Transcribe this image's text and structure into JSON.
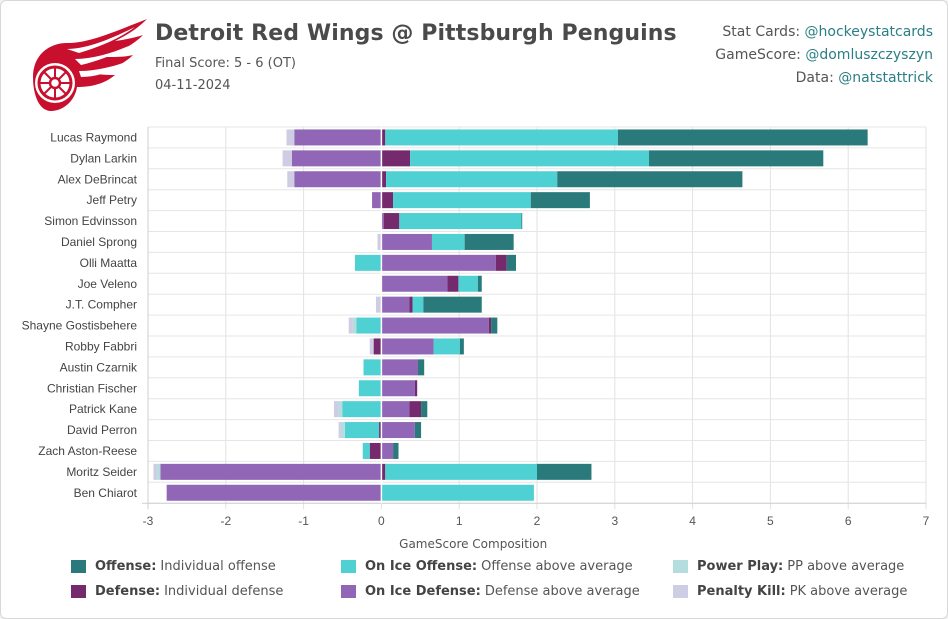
{
  "header": {
    "title": "Detroit Red Wings @ Pittsburgh Penguins",
    "final_score": "Final Score: 5 - 6 (OT)",
    "date": "04-11-2024",
    "team_logo": "red-wings-logo"
  },
  "credits": [
    {
      "label": "Stat Cards: ",
      "handle": "@hockeystatcards"
    },
    {
      "label": "GameScore: ",
      "handle": "@domluszczyszyn"
    },
    {
      "label": "Data: ",
      "handle": "@natstattrick"
    }
  ],
  "colors": {
    "offense": "#2a7a7c",
    "on_ice_offense": "#4fd0d3",
    "power_play": "#b4dde0",
    "defense": "#762a6e",
    "on_ice_defense": "#9166b6",
    "penalty_kill": "#cfcde3"
  },
  "legend": [
    {
      "key": "offense",
      "name": "Offense:",
      "desc": "Individual offense"
    },
    {
      "key": "on_ice_offense",
      "name": "On Ice Offense:",
      "desc": "Offense above average"
    },
    {
      "key": "power_play",
      "name": "Power Play:",
      "desc": "PP above average"
    },
    {
      "key": "defense",
      "name": "Defense:",
      "desc": "Individual defense"
    },
    {
      "key": "on_ice_defense",
      "name": "On Ice Defense:",
      "desc": "Defense above average"
    },
    {
      "key": "penalty_kill",
      "name": "Penalty Kill:",
      "desc": "PK above average"
    }
  ],
  "chart_data": {
    "type": "bar",
    "orientation": "horizontal-stacked",
    "xlabel": "GameScore Composition",
    "xlim": [
      -3,
      7
    ],
    "xticks": [
      -3,
      -2,
      -1,
      0,
      1,
      2,
      3,
      4,
      5,
      6,
      7
    ],
    "grid": true,
    "legend_position": "bottom",
    "series_order": [
      "on_ice_defense",
      "defense",
      "on_ice_offense",
      "offense",
      "power_play",
      "penalty_kill"
    ],
    "players": [
      {
        "name": "Lucas Raymond",
        "on_ice_defense": -1.12,
        "defense": 0.05,
        "on_ice_offense": 2.99,
        "offense": 3.21,
        "power_play": 0,
        "penalty_kill": -0.1
      },
      {
        "name": "Dylan Larkin",
        "on_ice_defense": -1.15,
        "defense": 0.37,
        "on_ice_offense": 3.07,
        "offense": 2.24,
        "power_play": 0,
        "penalty_kill": -0.12
      },
      {
        "name": "Alex DeBrincat",
        "on_ice_defense": -1.12,
        "defense": 0.06,
        "on_ice_offense": 2.2,
        "offense": 2.38,
        "power_play": 0,
        "penalty_kill": -0.09
      },
      {
        "name": "Jeff Petry",
        "on_ice_defense": -0.12,
        "defense": 0.15,
        "on_ice_offense": 1.77,
        "offense": 0.76,
        "power_play": 0,
        "penalty_kill": 0
      },
      {
        "name": "Simon Edvinsson",
        "on_ice_defense": 0.03,
        "defense": 0.2,
        "on_ice_offense": 1.57,
        "offense": 0.01,
        "power_play": 0,
        "penalty_kill": 0
      },
      {
        "name": "Daniel Sprong",
        "on_ice_defense": 0.65,
        "defense": 0,
        "on_ice_offense": 0.42,
        "offense": 0.63,
        "power_play": 0,
        "penalty_kill": -0.05
      },
      {
        "name": "Olli Maatta",
        "on_ice_defense": 1.47,
        "defense": 0.14,
        "on_ice_offense": -0.34,
        "offense": 0.12,
        "power_play": 0,
        "penalty_kill": 0
      },
      {
        "name": "Joe Veleno",
        "on_ice_defense": 0.85,
        "defense": 0.14,
        "on_ice_offense": 0.25,
        "offense": 0.05,
        "power_play": 0,
        "penalty_kill": 0
      },
      {
        "name": "J.T. Compher",
        "on_ice_defense": 0.36,
        "defense": 0.04,
        "on_ice_offense": 0.14,
        "offense": 0.75,
        "power_play": 0,
        "penalty_kill": -0.07
      },
      {
        "name": "Shayne Gostisbehere",
        "on_ice_defense": 1.38,
        "defense": 0.03,
        "on_ice_offense": -0.32,
        "offense": 0.08,
        "power_play": -0.05,
        "penalty_kill": -0.05
      },
      {
        "name": "Robby Fabbri",
        "on_ice_defense": 0.67,
        "defense": -0.1,
        "on_ice_offense": 0.34,
        "offense": 0.05,
        "power_play": 0,
        "penalty_kill": -0.05
      },
      {
        "name": "Austin Czarnik",
        "on_ice_defense": 0.47,
        "defense": 0,
        "on_ice_offense": -0.23,
        "offense": 0.08,
        "power_play": 0,
        "penalty_kill": 0
      },
      {
        "name": "Christian Fischer",
        "on_ice_defense": 0.43,
        "defense": 0.03,
        "on_ice_offense": -0.29,
        "offense": 0,
        "power_play": 0,
        "penalty_kill": 0
      },
      {
        "name": "Patrick Kane",
        "on_ice_defense": 0.36,
        "defense": 0.15,
        "on_ice_offense": -0.5,
        "offense": 0.08,
        "power_play": -0.05,
        "penalty_kill": -0.06
      },
      {
        "name": "David Perron",
        "on_ice_defense": 0.43,
        "defense": -0.03,
        "on_ice_offense": -0.44,
        "offense": 0.08,
        "power_play": -0.05,
        "penalty_kill": -0.03
      },
      {
        "name": "Zach Aston-Reese",
        "on_ice_defense": 0.15,
        "defense": -0.15,
        "on_ice_offense": -0.09,
        "offense": 0.07,
        "power_play": 0,
        "penalty_kill": 0
      },
      {
        "name": "Moritz Seider",
        "on_ice_defense": -2.84,
        "defense": 0.05,
        "on_ice_offense": 1.95,
        "offense": 0.7,
        "power_play": -0.04,
        "penalty_kill": -0.05
      },
      {
        "name": "Ben Chiarot",
        "on_ice_defense": -2.76,
        "defense": 0,
        "on_ice_offense": 1.96,
        "offense": 0,
        "power_play": 0,
        "penalty_kill": 0
      }
    ]
  }
}
